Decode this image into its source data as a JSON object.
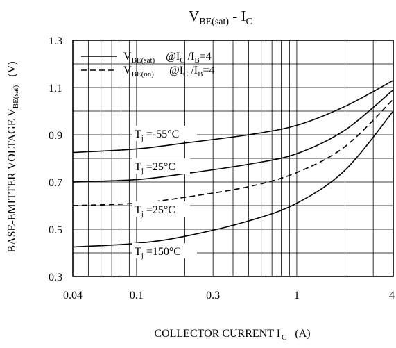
{
  "chart_data": {
    "type": "line",
    "title": {
      "main": "V",
      "main_sub": "BE(sat)",
      "sep": " - ",
      "second": "I",
      "second_sub": "C"
    },
    "xlabel": {
      "main": "COLLECTOR CURRENT I",
      "sub": "C",
      "unit": "(A)"
    },
    "ylabel": {
      "main": "BASE-EMITTER VOLTAGE V",
      "sub": "BE(sat)",
      "unit": "(V)"
    },
    "x_scale": "log",
    "xlim": [
      0.04,
      4
    ],
    "ylim": [
      0.3,
      1.3
    ],
    "x_ticks": [
      {
        "value": 0.04,
        "label": "0.04"
      },
      {
        "value": 0.1,
        "label": "0.1"
      },
      {
        "value": 0.3,
        "label": "0.3"
      },
      {
        "value": 1,
        "label": "1"
      },
      {
        "value": 4,
        "label": "4"
      }
    ],
    "y_ticks": [
      {
        "value": 0.3,
        "label": "0.3"
      },
      {
        "value": 0.5,
        "label": "0.5"
      },
      {
        "value": 0.7,
        "label": "0.7"
      },
      {
        "value": 0.9,
        "label": "0.9"
      },
      {
        "value": 1.1,
        "label": "1.1"
      },
      {
        "value": 1.3,
        "label": "1.3"
      }
    ],
    "grid": true,
    "legend": {
      "placement": "top-left",
      "items": [
        {
          "style": "solid",
          "main": "V",
          "sub": "BE(sat)",
          "cond": "@I",
          "cond_sub1": "C",
          "cond_mid": " /I",
          "cond_sub2": "B",
          "cond_end": "=4"
        },
        {
          "style": "dashed",
          "main": "V",
          "sub": "BE(on)",
          "cond": "@I",
          "cond_sub1": "C",
          "cond_mid": " /I",
          "cond_sub2": "B",
          "cond_end": "=4"
        }
      ]
    },
    "series": [
      {
        "label_main": "T",
        "label_sub": "j",
        "label_rest": " =-55°C",
        "style": "solid",
        "points": [
          [
            0.04,
            0.825
          ],
          [
            0.1,
            0.84
          ],
          [
            0.2,
            0.865
          ],
          [
            0.5,
            0.9
          ],
          [
            1,
            0.94
          ],
          [
            2,
            1.02
          ],
          [
            4,
            1.13
          ]
        ]
      },
      {
        "label_main": "T",
        "label_sub": "j",
        "label_rest": " =25°C",
        "style": "solid",
        "points": [
          [
            0.04,
            0.7
          ],
          [
            0.1,
            0.71
          ],
          [
            0.2,
            0.735
          ],
          [
            0.5,
            0.775
          ],
          [
            1,
            0.82
          ],
          [
            2,
            0.92
          ],
          [
            4,
            1.09
          ]
        ]
      },
      {
        "label_main": "T",
        "label_sub": "j",
        "label_rest": " =25°C",
        "style": "dashed",
        "points": [
          [
            0.04,
            0.6
          ],
          [
            0.1,
            0.61
          ],
          [
            0.2,
            0.635
          ],
          [
            0.5,
            0.68
          ],
          [
            1,
            0.74
          ],
          [
            2,
            0.85
          ],
          [
            4,
            1.05
          ]
        ]
      },
      {
        "label_main": "T",
        "label_sub": "j",
        "label_rest": " =150°C",
        "style": "solid",
        "points": [
          [
            0.04,
            0.425
          ],
          [
            0.1,
            0.44
          ],
          [
            0.2,
            0.47
          ],
          [
            0.5,
            0.535
          ],
          [
            1,
            0.61
          ],
          [
            2,
            0.75
          ],
          [
            4,
            1.0
          ]
        ]
      }
    ]
  }
}
